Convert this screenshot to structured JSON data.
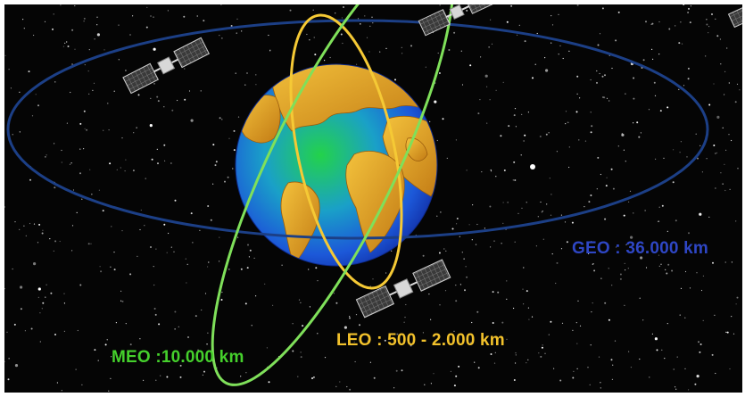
{
  "orbits": {
    "geo": {
      "label": "GEO : 36.000 km",
      "color": "#2e46c4",
      "line_color": "#1c3f86"
    },
    "leo": {
      "label": "LEO : 500 - 2.000 km",
      "color": "#f2c12b",
      "line_color": "#f5c935"
    },
    "meo": {
      "label": "MEO :10.000 km",
      "color": "#45d02c",
      "line_color": "#7fe05a"
    }
  },
  "colors": {
    "space": "#050505",
    "ocean": "#1f5fd6",
    "land": "#e0a02a"
  },
  "icons": [
    "earth-globe",
    "satellite",
    "satellite",
    "satellite",
    "satellite",
    "star-field"
  ]
}
